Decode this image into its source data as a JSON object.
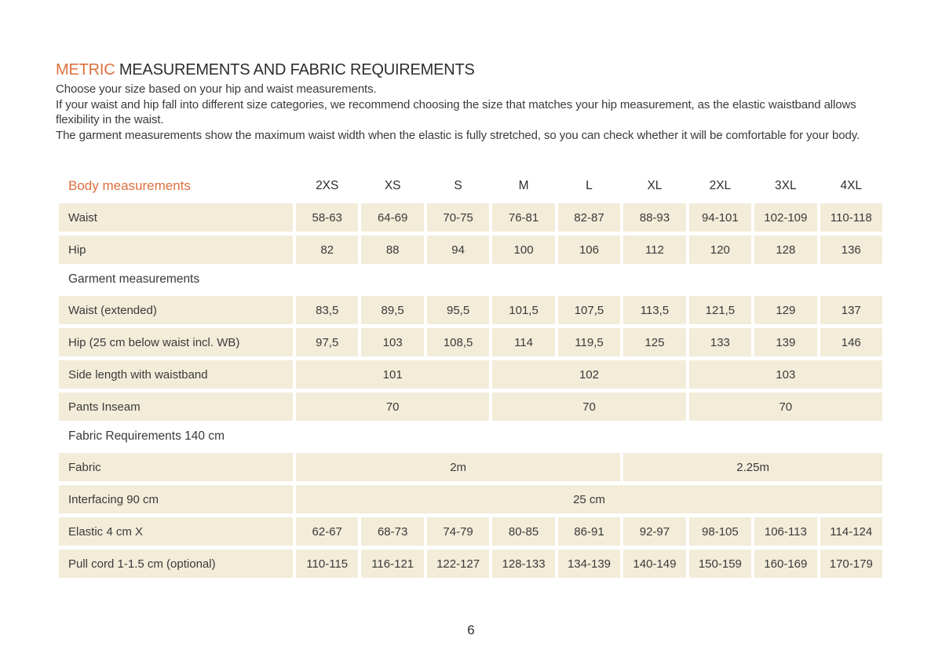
{
  "colors": {
    "accent": "#dd6f3e",
    "band": "#f3ecd9",
    "text": "#3a3a3a",
    "heading": "#2d2d2d"
  },
  "title": {
    "highlight": "METRIC",
    "rest": " MEASUREMENTS AND FABRIC REQUIREMENTS"
  },
  "intro": {
    "p1": "Choose your size based on your hip and waist measurements.",
    "p2": "If your waist and hip fall into different size categories, we recommend choosing the size that matches your hip measurement, as the elastic waistband allows flexibility in the waist.",
    "p3": "The garment measurements show the maximum waist width when the elastic is fully stretched, so you can check whether it will be comfortable for your body."
  },
  "table": {
    "header": {
      "label": "Body measurements",
      "sizes": [
        "2XS",
        "XS",
        "S",
        "M",
        "L",
        "XL",
        "2XL",
        "3XL",
        "4XL"
      ]
    },
    "sections": {
      "garment": "Garment measurements",
      "fabric": "Fabric Requirements 140 cm"
    },
    "rows": {
      "waist": {
        "label": "Waist",
        "values": [
          "58-63",
          "64-69",
          "70-75",
          "76-81",
          "82-87",
          "88-93",
          "94-101",
          "102-109",
          "110-118"
        ]
      },
      "hip": {
        "label": "Hip",
        "values": [
          "82",
          "88",
          "94",
          "100",
          "106",
          "112",
          "120",
          "128",
          "136"
        ]
      },
      "waist_extended": {
        "label": "Waist (extended)",
        "values": [
          "83,5",
          "89,5",
          "95,5",
          "101,5",
          "107,5",
          "113,5",
          "121,5",
          "129",
          "137"
        ]
      },
      "hip_garment": {
        "label": "Hip (25 cm below waist incl. WB)",
        "values": [
          "97,5",
          "103",
          "108,5",
          "114",
          "119,5",
          "125",
          "133",
          "139",
          "146"
        ]
      },
      "side_length": {
        "label": "Side length with waistband",
        "values": [
          "101",
          "102",
          "103"
        ]
      },
      "inseam": {
        "label": "Pants Inseam",
        "values": [
          "70",
          "70",
          "70"
        ]
      },
      "fabric": {
        "label": "Fabric",
        "values": [
          "2m",
          "2.25m"
        ]
      },
      "interfacing": {
        "label": "Interfacing 90 cm",
        "value": "25 cm"
      },
      "elastic": {
        "label": "Elastic 4 cm X",
        "values": [
          "62-67",
          "68-73",
          "74-79",
          "80-85",
          "86-91",
          "92-97",
          "98-105",
          "106-113",
          "114-124"
        ]
      },
      "pull_cord": {
        "label": "Pull cord 1-1.5 cm (optional)",
        "values": [
          "110-115",
          "116-121",
          "122-127",
          "128-133",
          "134-139",
          "140-149",
          "150-159",
          "160-169",
          "170-179"
        ]
      }
    }
  },
  "page": {
    "number": "6"
  }
}
